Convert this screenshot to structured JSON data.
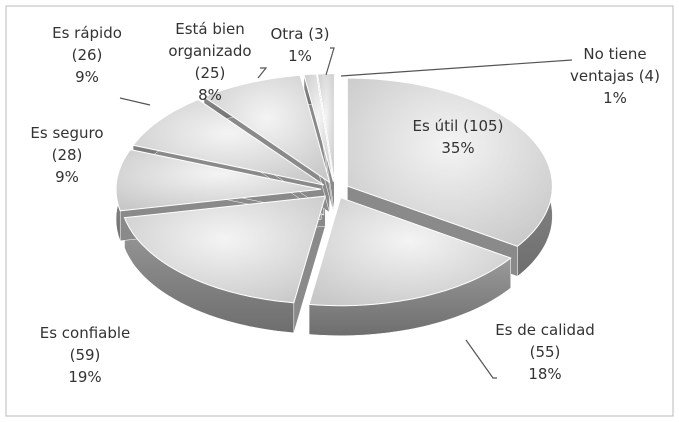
{
  "chart_data": {
    "type": "pie",
    "categories": [
      "Es útil",
      "Es de calidad",
      "Es confiable",
      "Es seguro",
      "Es rápido",
      "Está bien organizado",
      "Otra",
      "No tiene ventajas"
    ],
    "values": [
      105,
      55,
      59,
      28,
      26,
      25,
      3,
      4
    ],
    "value_labels": [
      "(105)",
      "(55)",
      "(59)",
      "(28)",
      "(26)",
      "(25)",
      "(3)",
      "(4)"
    ],
    "percents": [
      35,
      18,
      19,
      9,
      9,
      8,
      1,
      1
    ],
    "percent_labels": [
      "35%",
      "18%",
      "19%",
      "9%",
      "9%",
      "8%",
      "1%",
      "1%"
    ],
    "color": "#d8d8d8"
  }
}
